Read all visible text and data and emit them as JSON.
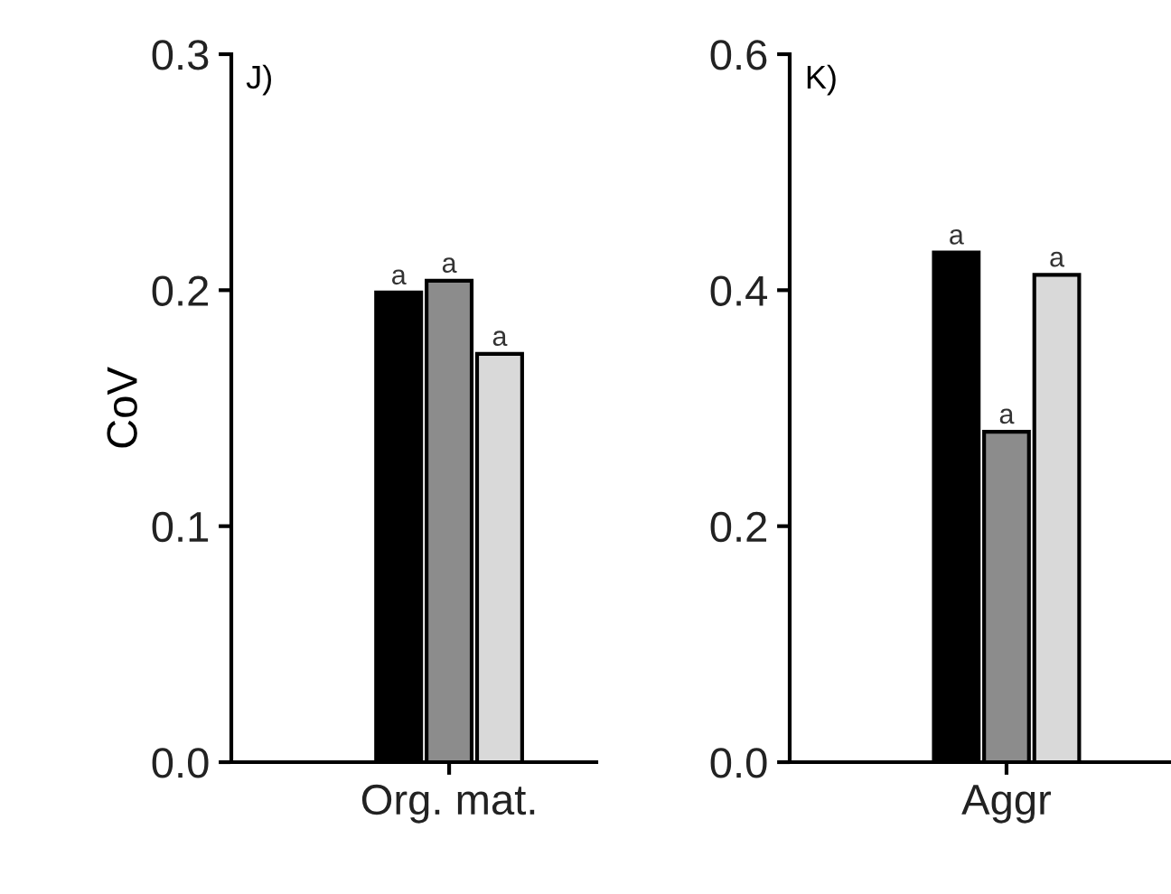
{
  "chart_data": [
    {
      "type": "bar",
      "annotations": [
        "J)"
      ],
      "ylabel": "CoV",
      "categories": [
        "Org. mat."
      ],
      "ylim": [
        0,
        0.3
      ],
      "yticks": [
        {
          "value": 0,
          "label": "0.0"
        },
        0.1,
        0.2,
        0.3
      ],
      "grid": false,
      "legend": false,
      "series": [
        {
          "color": "#000000",
          "values": [
            0.199
          ],
          "value_labels": [
            "a"
          ]
        },
        {
          "color": "#8c8c8c",
          "values": [
            0.204
          ],
          "value_labels": [
            "a"
          ]
        },
        {
          "color": "#d9d9d9",
          "values": [
            0.173
          ],
          "value_labels": [
            "a"
          ]
        }
      ]
    },
    {
      "type": "bar",
      "annotations": [
        "K)"
      ],
      "categories": [
        "Aggr"
      ],
      "ylim": [
        0,
        0.6
      ],
      "yticks": [
        {
          "value": 0,
          "label": "0.0"
        },
        0.2,
        0.4,
        0.6
      ],
      "grid": false,
      "legend": false,
      "series": [
        {
          "color": "#000000",
          "values": [
            0.432
          ],
          "value_labels": [
            "a"
          ]
        },
        {
          "color": "#8c8c8c",
          "values": [
            0.28
          ],
          "value_labels": [
            "a"
          ]
        },
        {
          "color": "#d9d9d9",
          "values": [
            0.413
          ],
          "value_labels": [
            "a"
          ]
        }
      ]
    }
  ]
}
